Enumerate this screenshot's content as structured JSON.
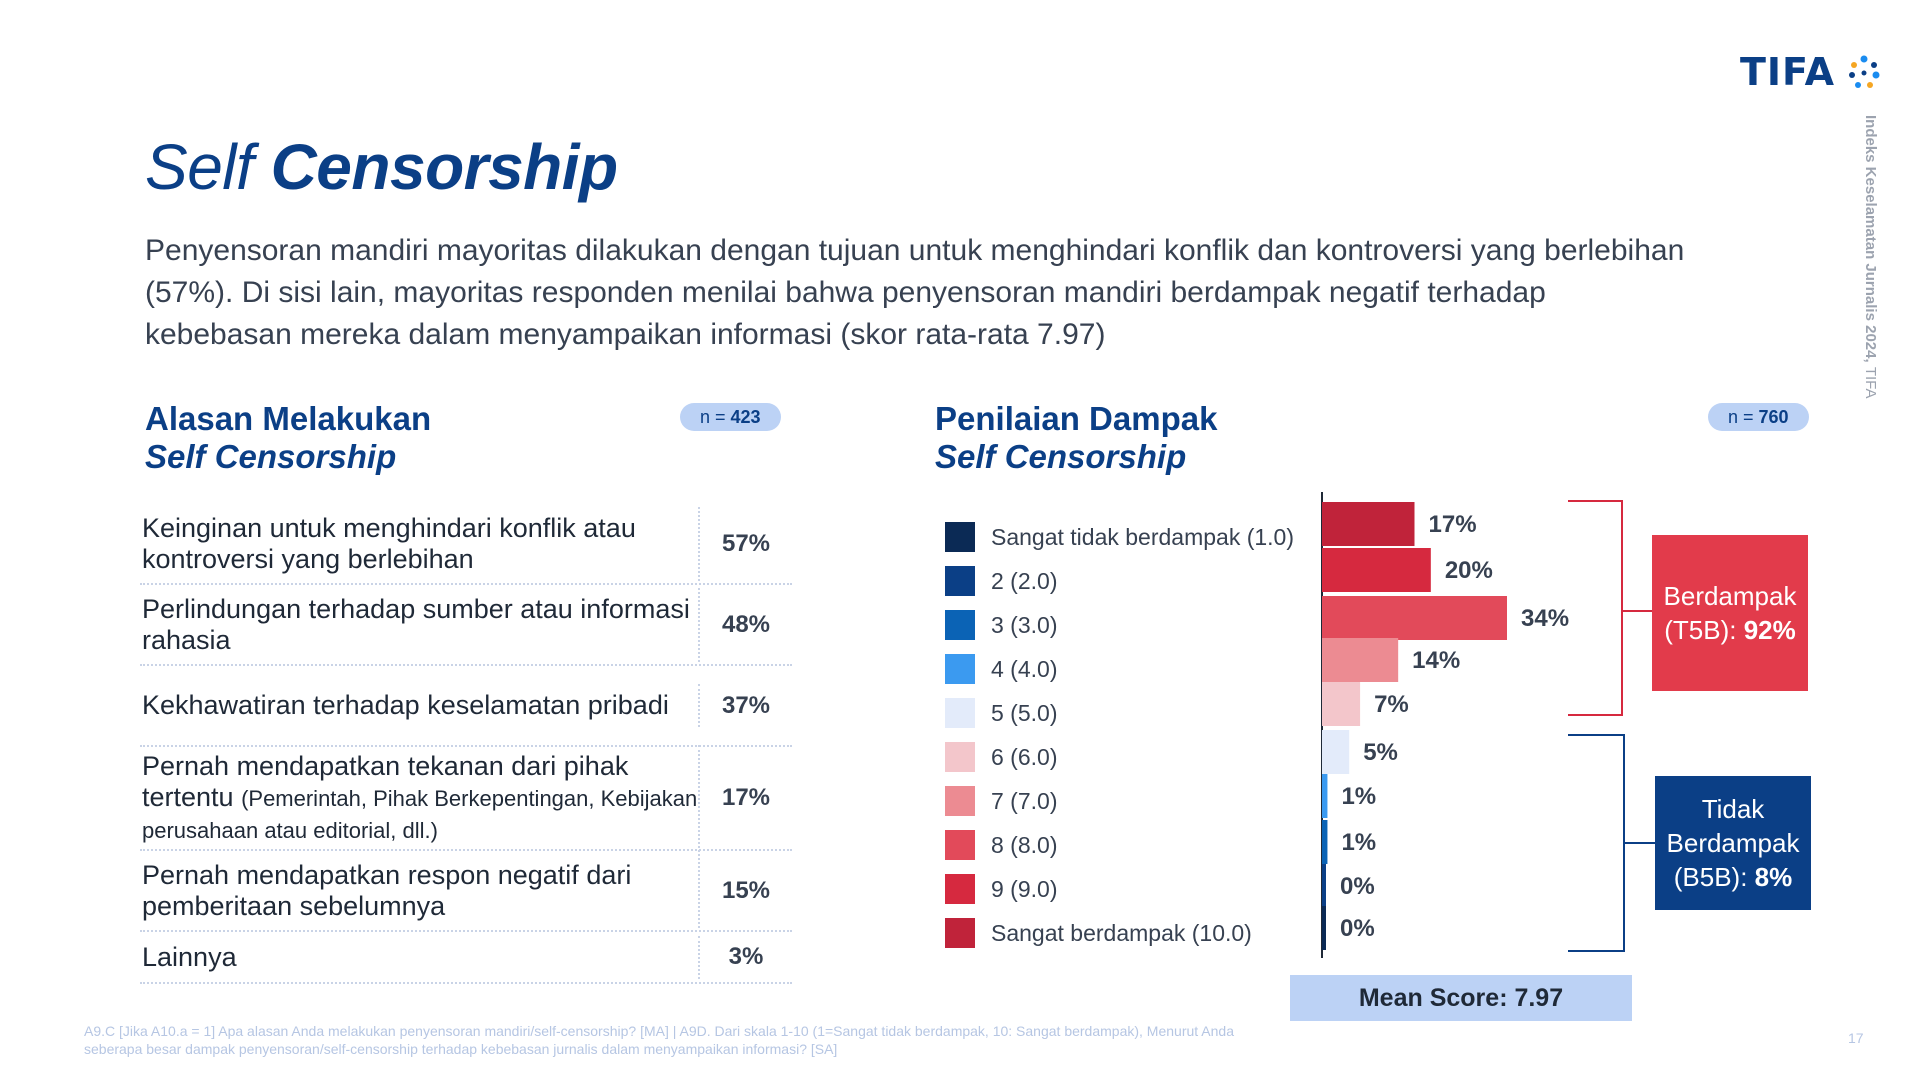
{
  "logo": {
    "text": "TIFA"
  },
  "side_label": {
    "bold": "Indeks Keselamatan Jurnalis 2024,",
    "rest": "TIFA"
  },
  "title": {
    "part1": "Self",
    "part2": "Censorship"
  },
  "subtitle": "Penyensoran mandiri mayoritas dilakukan dengan tujuan untuk menghindari konflik dan kontroversi yang berlebihan (57%). Di sisi lain, mayoritas responden menilai bahwa penyensoran mandiri berdampak negatif terhadap kebebasan mereka dalam menyampaikan informasi (skor rata-rata 7.97)",
  "left": {
    "title_line1": "Alasan Melakukan",
    "title_line2": "Self Censorship",
    "n_prefix": "n = ",
    "n_value": "423",
    "rows": [
      {
        "label": "Keinginan untuk menghindari konflik atau kontroversi yang berlebihan",
        "note": "",
        "value": "57%"
      },
      {
        "label": "Perlindungan terhadap sumber atau informasi rahasia",
        "note": "",
        "value": "48%"
      },
      {
        "label": "Kekhawatiran terhadap keselamatan pribadi",
        "note": "",
        "value": "37%"
      },
      {
        "label": "Pernah mendapatkan tekanan dari pihak tertentu ",
        "note": "(Pemerintah, Pihak Berkepentingan, Kebijakan perusahaan atau editorial, dll.)",
        "value": "17%"
      },
      {
        "label": "Pernah mendapatkan respon negatif dari pemberitaan sebelumnya",
        "note": "",
        "value": "15%"
      },
      {
        "label": "Lainnya",
        "note": "",
        "value": "3%"
      }
    ]
  },
  "right": {
    "title_line1": "Penilaian Dampak",
    "title_line2": "Self Censorship",
    "n_prefix": "n = ",
    "n_value": "760",
    "box_top": {
      "line1": "Berdampak",
      "line2_prefix": "(T5B): ",
      "value": "92%"
    },
    "box_bottom": {
      "line1": "Tidak",
      "line2": "Berdampak",
      "line3_prefix": "(B5B): ",
      "value": "8%"
    },
    "mean_score": "Mean Score: 7.97"
  },
  "chart_data": {
    "type": "bar",
    "orientation": "horizontal-stacked-rows",
    "categories": [
      "Sangat berdampak (10.0)",
      "9 (9.0)",
      "8 (8.0)",
      "7 (7.0)",
      "6 (6.0)",
      "5 (5.0)",
      "4 (4.0)",
      "3 (3.0)",
      "2 (2.0)",
      "Sangat tidak berdampak (1.0)"
    ],
    "values": [
      17,
      20,
      34,
      14,
      7,
      5,
      1,
      1,
      0,
      0
    ],
    "labels": [
      "17%",
      "20%",
      "34%",
      "14%",
      "7%",
      "5%",
      "1%",
      "1%",
      "0%",
      "0%"
    ],
    "colors": [
      "#c0233a",
      "#d6293f",
      "#e24a5a",
      "#ec8b92",
      "#f3c6cb",
      "#e3ebfa",
      "#3b9af0",
      "#0b63b5",
      "#0b3f86",
      "#0b2a55"
    ],
    "legend": [
      {
        "label": "Sangat tidak berdampak (1.0)",
        "color": "#0b2a55"
      },
      {
        "label": "2 (2.0)",
        "color": "#0b3f86"
      },
      {
        "label": "3 (3.0)",
        "color": "#0b63b5"
      },
      {
        "label": "4 (4.0)",
        "color": "#3b9af0"
      },
      {
        "label": "5 (5.0)",
        "color": "#e3ebfa"
      },
      {
        "label": "6 (6.0)",
        "color": "#f3c6cb"
      },
      {
        "label": "7 (7.0)",
        "color": "#ec8b92"
      },
      {
        "label": "8 (8.0)",
        "color": "#e24a5a"
      },
      {
        "label": "9 (9.0)",
        "color": "#d6293f"
      },
      {
        "label": "Sangat berdampak (10.0)",
        "color": "#c0233a"
      }
    ],
    "xlim": [
      0,
      34
    ],
    "legend_position": "left"
  },
  "footnote": "A9.C [Jika A10.a = 1] Apa alasan Anda melakukan penyensoran mandiri/self-censorship? [MA] | A9D. Dari skala 1-10 (1=Sangat tidak berdampak, 10: Sangat berdampak), Menurut Anda seberapa besar dampak penyensoran/self-censorship terhadap kebebasan jurnalis dalam menyampaikan informasi? [SA]",
  "page_number": "17"
}
